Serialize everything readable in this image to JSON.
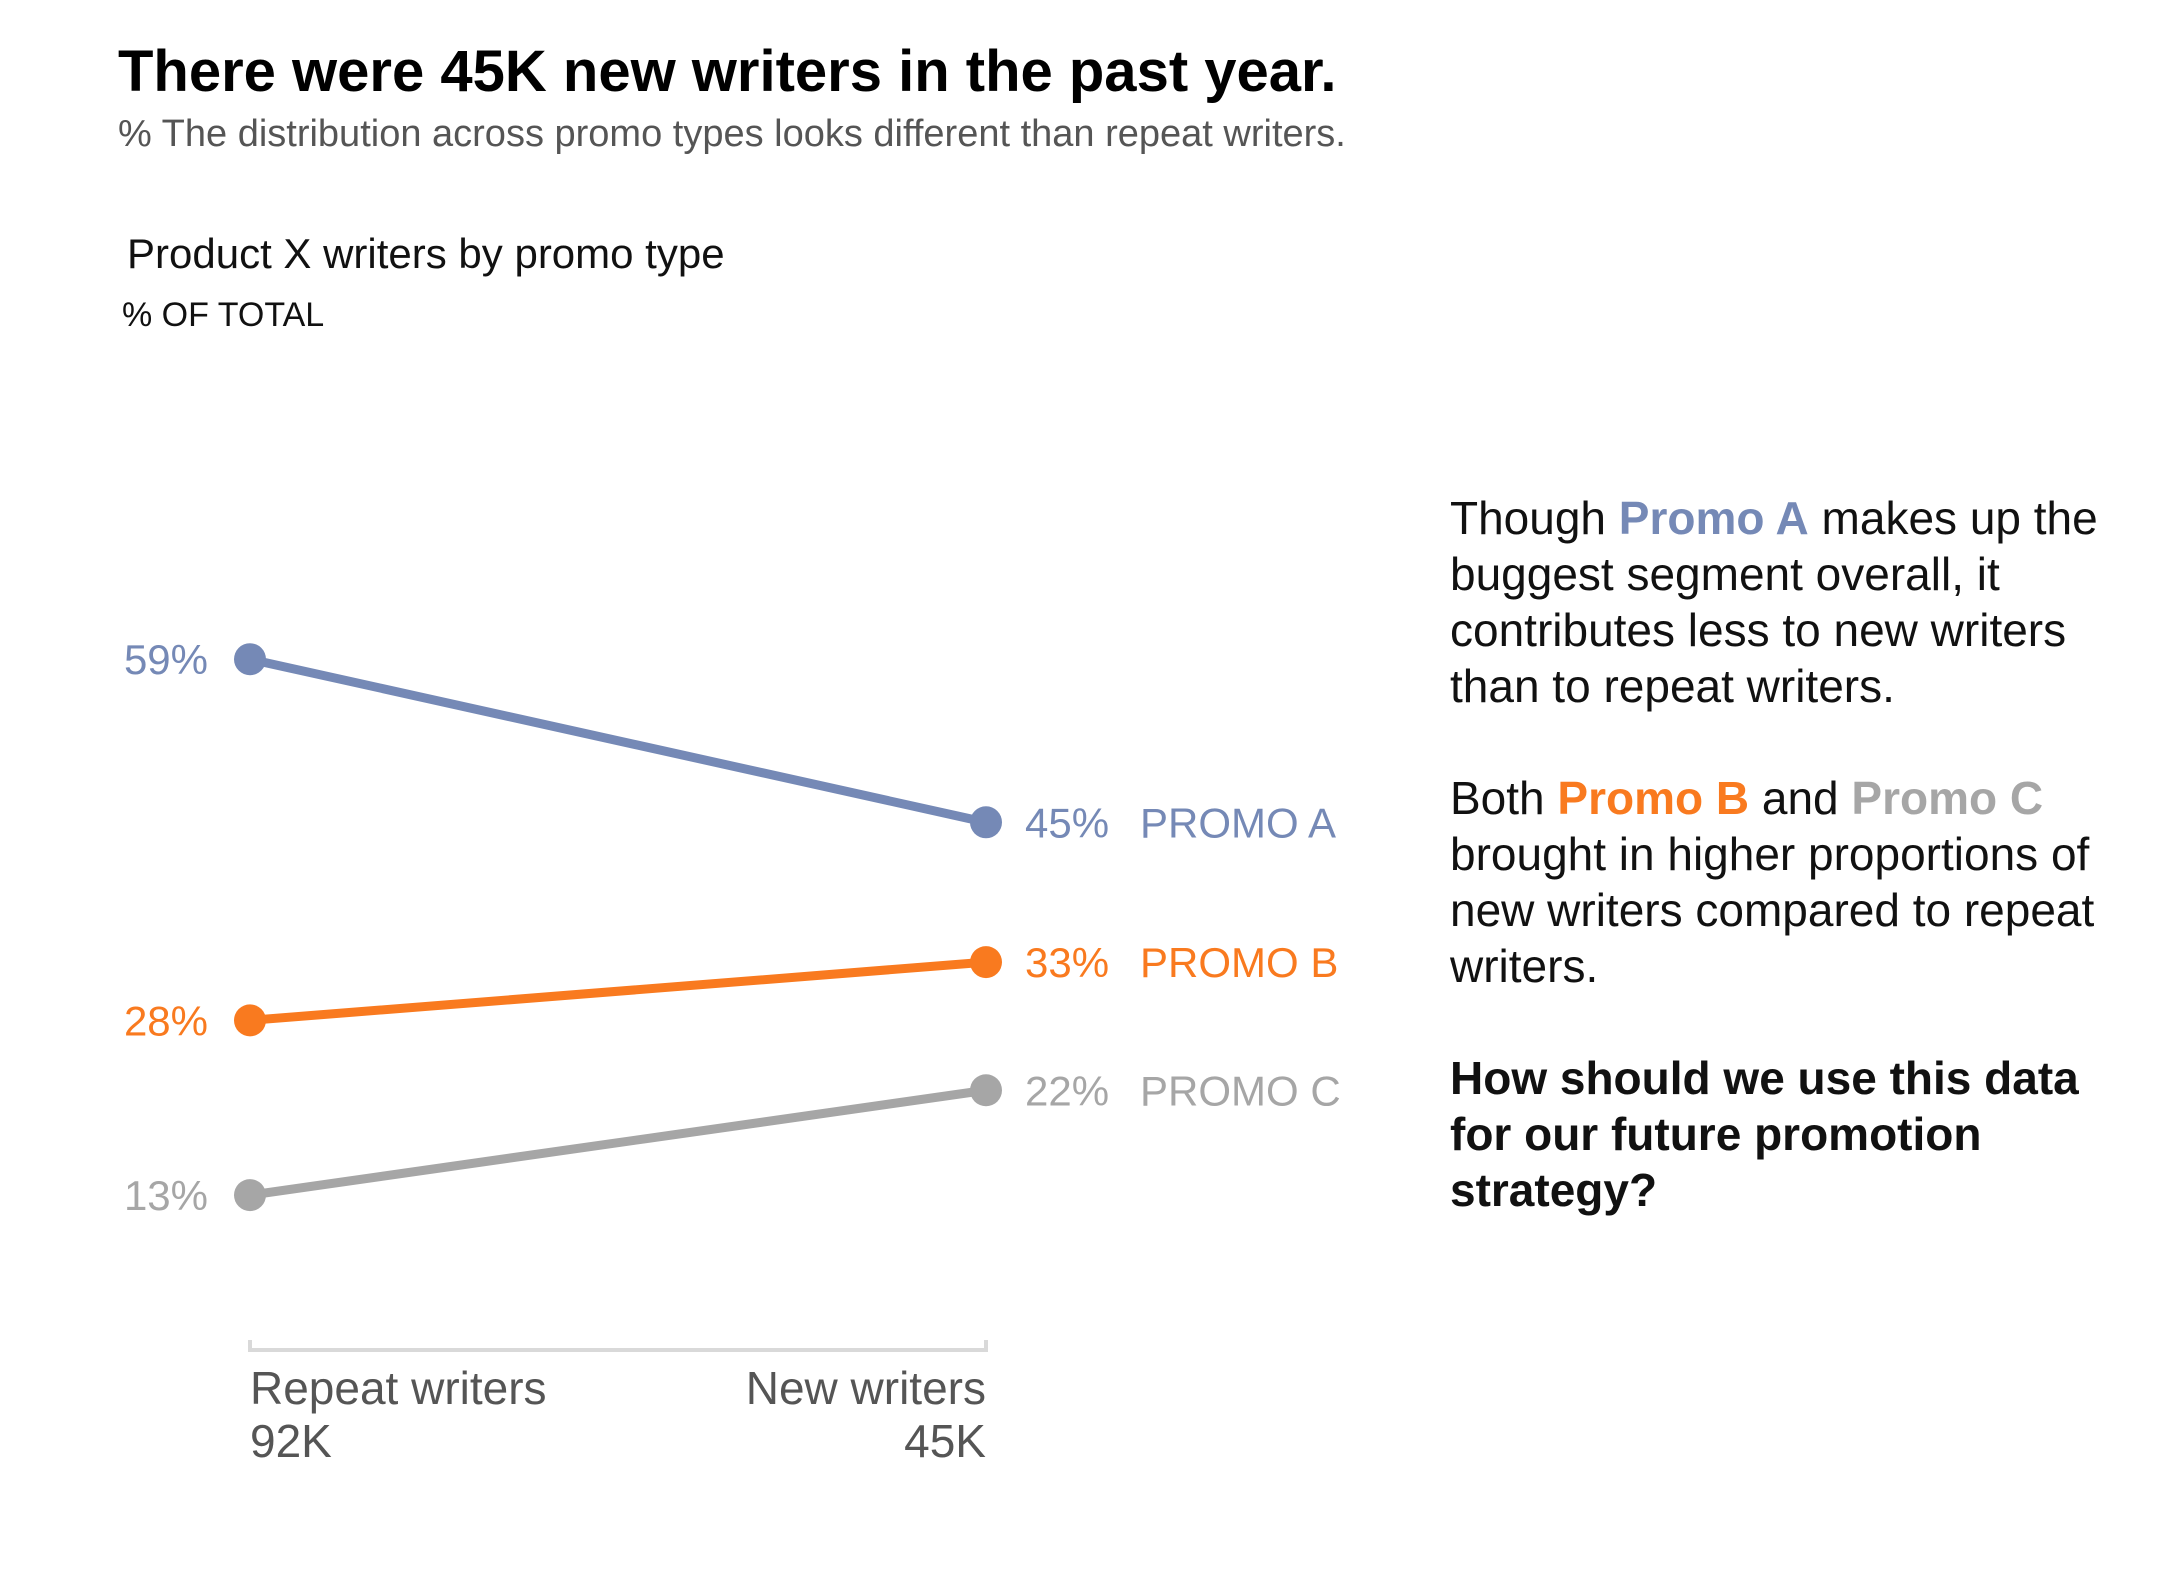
{
  "title": "There were 45K new writers in the past year.",
  "subtitle": "% The distribution across promo types looks different than repeat writers.",
  "chart_title": "Product X writers by promo type",
  "chart_unit": "% OF TOTAL",
  "commentary": {
    "p1_a": "Though ",
    "p1_em": "Promo A",
    "p1_b": " makes up the buggest segment overall, it contributes less to new writers than to repeat writers.",
    "p2_a": "Both ",
    "p2_em1": "Promo B",
    "p2_b": " and ",
    "p2_em2": "Promo C",
    "p2_c": " brought in higher proportions of new writers compared to repeat writers.",
    "question": "How should we use this data for our future promotion strategy?"
  },
  "colors": {
    "promo_a": "#7589b6",
    "promo_b": "#f97a1f",
    "promo_c": "#a6a6a6",
    "axis": "#d9d9d9",
    "axis_text": "#555555"
  },
  "chart_data": {
    "type": "line",
    "categories": [
      "Repeat writers",
      "New writers"
    ],
    "category_totals": [
      "92K",
      "45K"
    ],
    "series": [
      {
        "name": "PROMO A",
        "values": [
          59,
          45
        ],
        "labels": [
          "59%",
          "45%"
        ],
        "color": "#7589b6"
      },
      {
        "name": "PROMO B",
        "values": [
          28,
          33
        ],
        "labels": [
          "28%",
          "33%"
        ],
        "color": "#f97a1f"
      },
      {
        "name": "PROMO C",
        "values": [
          13,
          22
        ],
        "labels": [
          "13%",
          "22%"
        ],
        "color": "#a6a6a6"
      }
    ],
    "grid": false,
    "legend": "direct labels at right end of lines"
  }
}
